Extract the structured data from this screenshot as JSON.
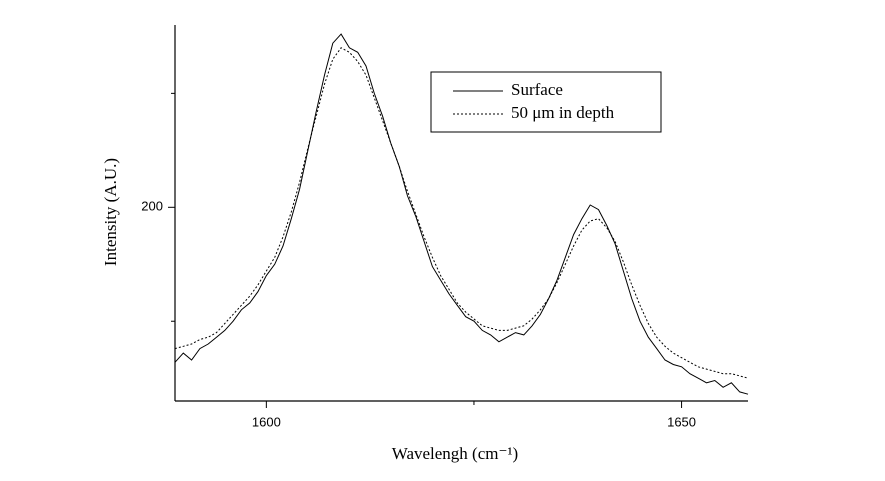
{
  "chart_data": {
    "type": "line",
    "xlabel": "Wavelengh (cm⁻¹)",
    "ylabel": "Intensity (A.U.)",
    "x": [
      1589,
      1590,
      1591,
      1592,
      1593,
      1594,
      1595,
      1596,
      1597,
      1598,
      1599,
      1600,
      1601,
      1602,
      1603,
      1604,
      1605,
      1606,
      1607,
      1608,
      1609,
      1610,
      1611,
      1612,
      1613,
      1614,
      1615,
      1616,
      1617,
      1618,
      1619,
      1620,
      1621,
      1622,
      1623,
      1624,
      1625,
      1626,
      1627,
      1628,
      1629,
      1630,
      1631,
      1632,
      1633,
      1634,
      1635,
      1636,
      1637,
      1638,
      1639,
      1640,
      1641,
      1642,
      1643,
      1644,
      1645,
      1646,
      1647,
      1648,
      1649,
      1650,
      1651,
      1652,
      1653,
      1654,
      1655,
      1656,
      1657,
      1658
    ],
    "series": [
      {
        "name": "Surface",
        "color": "#000000",
        "dash": "none",
        "values": [
          132,
          136,
          133,
          138,
          140,
          143,
          146,
          150,
          155,
          158,
          163,
          170,
          175,
          183,
          195,
          208,
          225,
          242,
          258,
          272,
          276,
          270,
          268,
          262,
          250,
          240,
          228,
          218,
          205,
          196,
          185,
          174,
          168,
          162,
          157,
          152,
          150,
          146,
          144,
          141,
          143,
          145,
          144,
          148,
          153,
          160,
          168,
          178,
          188,
          195,
          201,
          199,
          192,
          184,
          172,
          160,
          150,
          143,
          138,
          133,
          131,
          130,
          127,
          125,
          123,
          124,
          121,
          123,
          119,
          118
        ]
      },
      {
        "name": "50 μm in depth",
        "color": "#000000",
        "dash": "2,2",
        "values": [
          138,
          139,
          140,
          142,
          143,
          145,
          149,
          153,
          157,
          161,
          166,
          172,
          178,
          187,
          198,
          211,
          226,
          240,
          254,
          265,
          270,
          268,
          264,
          258,
          248,
          238,
          228,
          218,
          207,
          197,
          187,
          178,
          170,
          164,
          158,
          154,
          151,
          148,
          147,
          146,
          146,
          147,
          148,
          151,
          155,
          160,
          167,
          175,
          183,
          190,
          194,
          195,
          191,
          185,
          176,
          166,
          157,
          149,
          143,
          139,
          136,
          134,
          132,
          130,
          129,
          128,
          127,
          127,
          126,
          125
        ]
      }
    ],
    "xlim": [
      1589,
      1658
    ],
    "ylim": [
      115,
      280
    ],
    "xticks": [
      1600,
      1650
    ],
    "yticks": [
      200
    ],
    "xminorticks": [
      1625
    ],
    "yminorticks": [
      150,
      250
    ],
    "legend": "upper right"
  }
}
